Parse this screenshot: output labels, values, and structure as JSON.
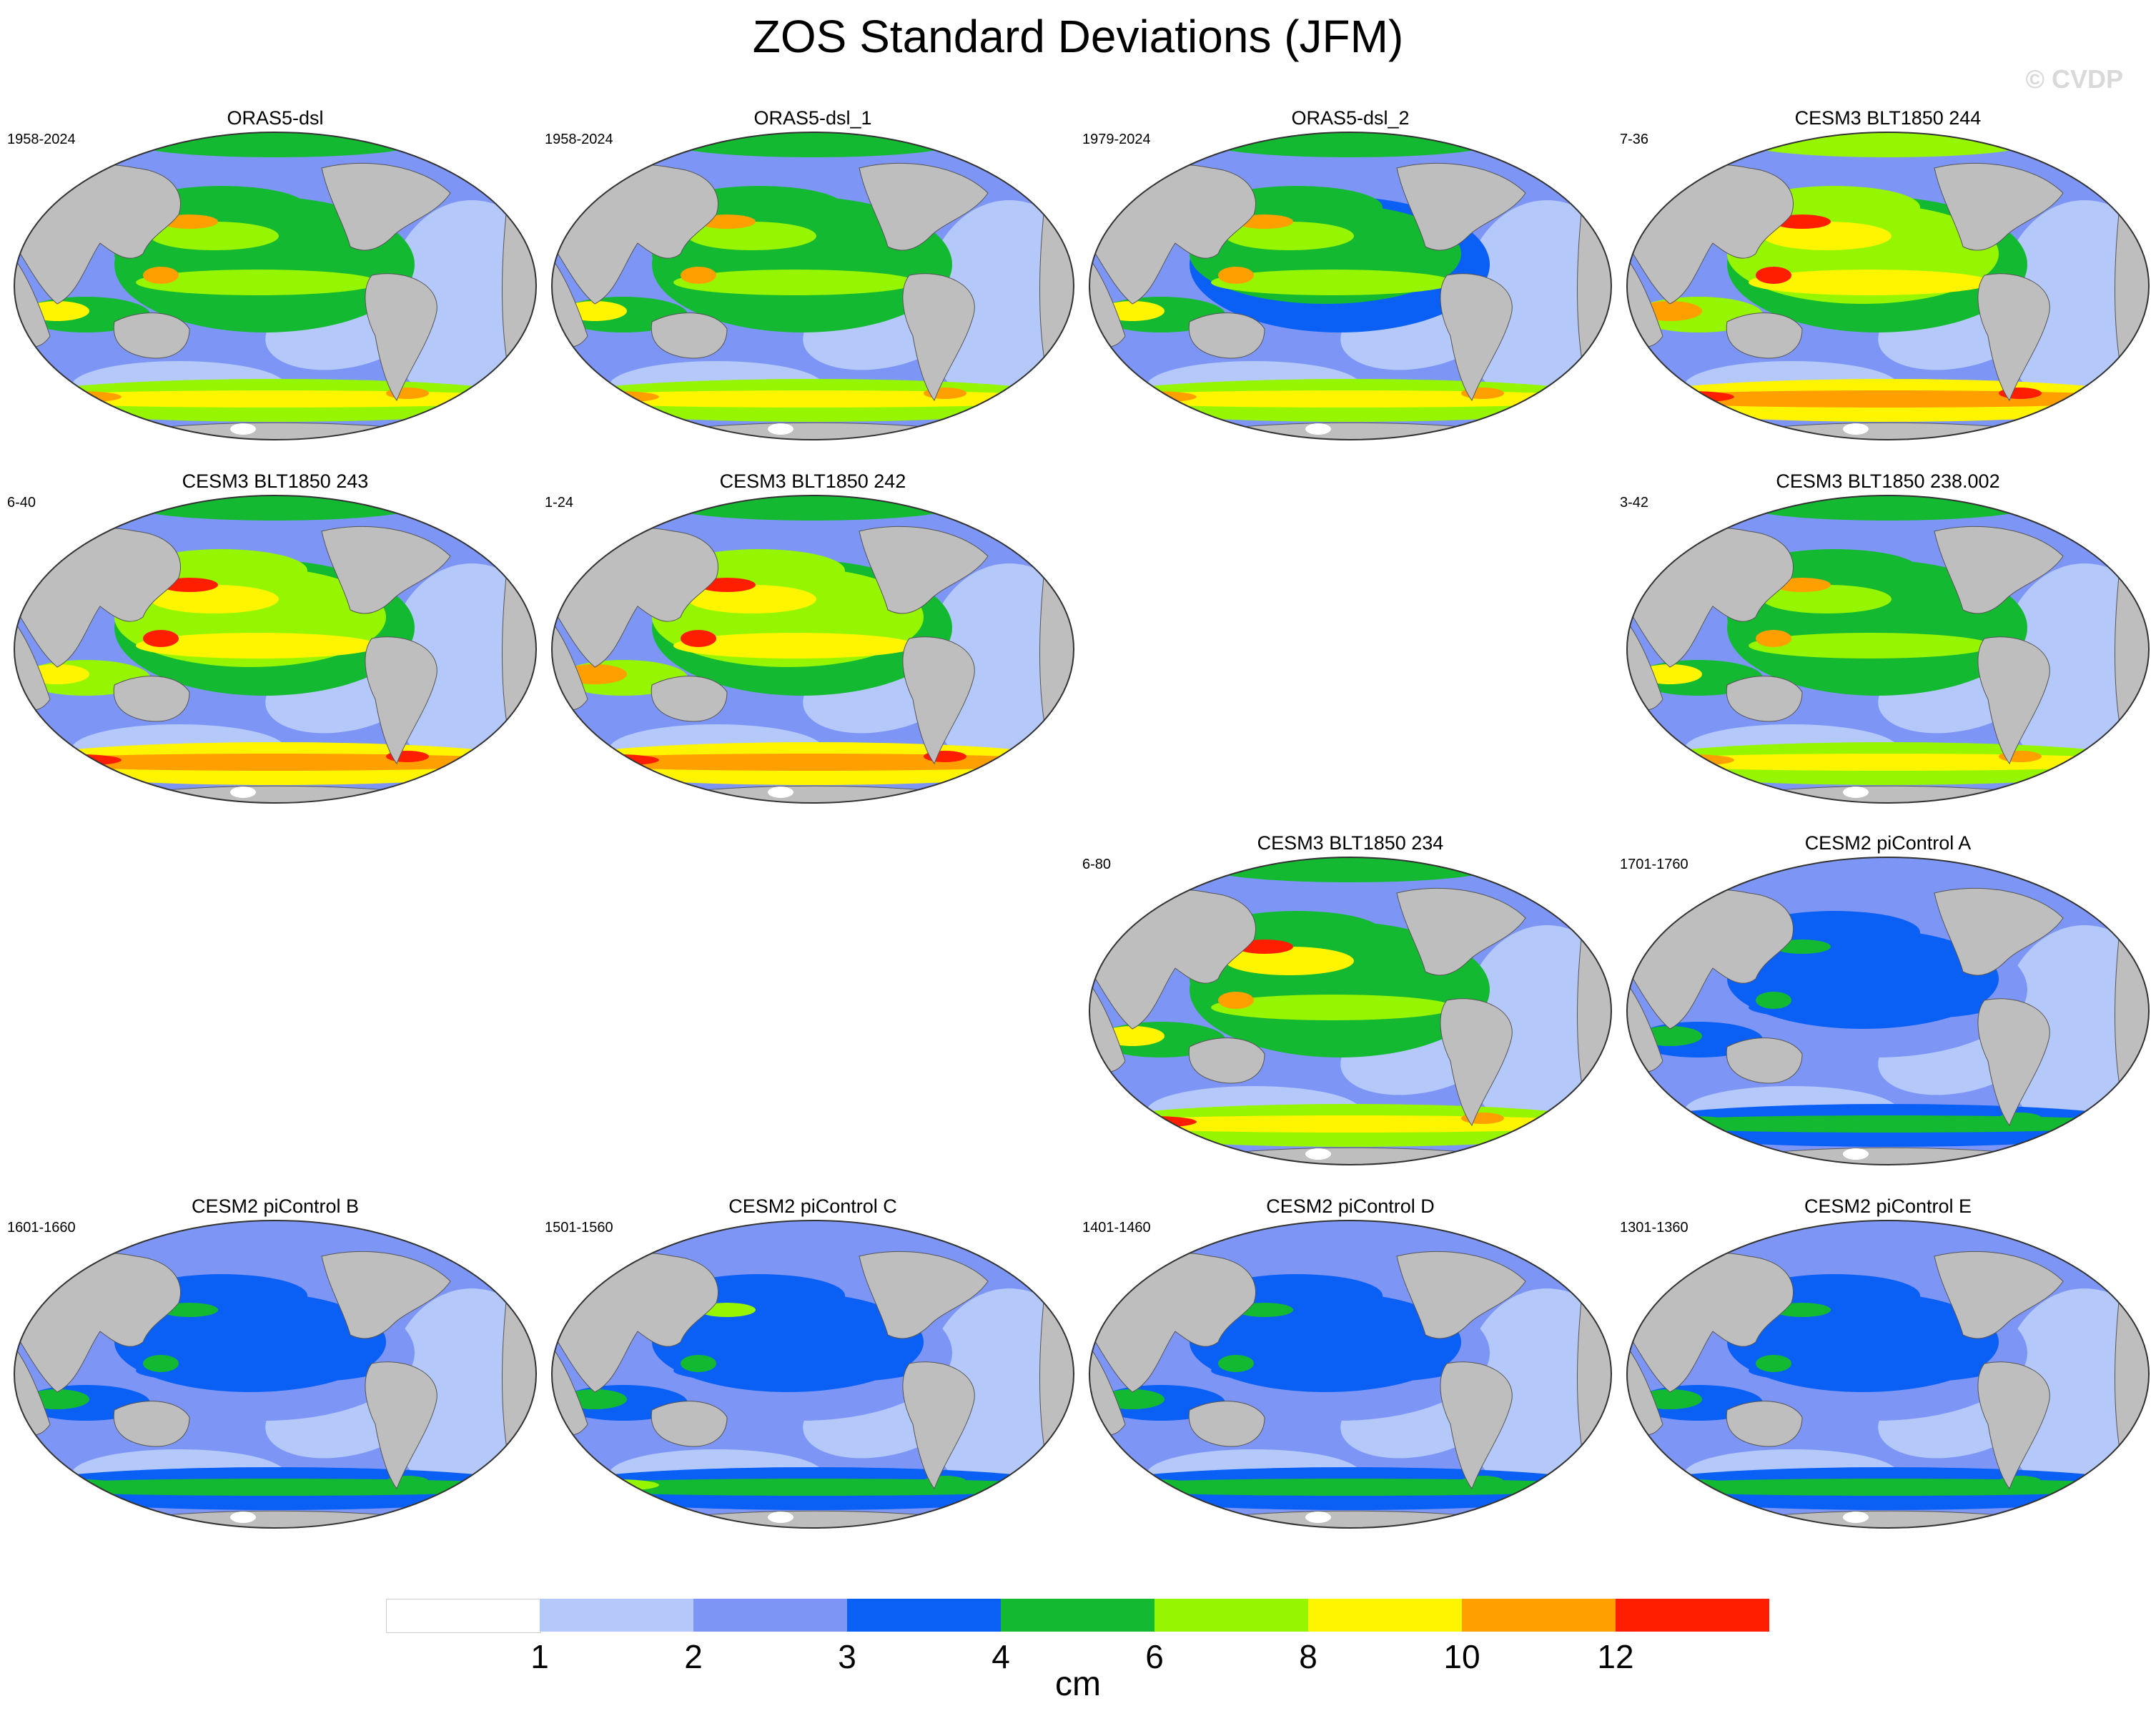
{
  "figure": {
    "title": "ZOS Standard Deviations (JFM)",
    "copyright": "© CVDP"
  },
  "panels": [
    {
      "title": "ORAS5-dsl",
      "years": "1958-2024",
      "intensity": 0.85
    },
    {
      "title": "ORAS5-dsl_1",
      "years": "1958-2024",
      "intensity": 0.85
    },
    {
      "title": "ORAS5-dsl_2",
      "years": "1979-2024",
      "intensity": 0.82
    },
    {
      "title": "CESM3 BLT1850 244",
      "years": "7-36",
      "intensity": 1.0
    },
    {
      "title": "CESM3 BLT1850 243",
      "years": "6-40",
      "intensity": 0.92
    },
    {
      "title": "CESM3 BLT1850 242",
      "years": "1-24",
      "intensity": 0.95
    },
    {
      "title": "CESM3 BLT1850 238.002",
      "years": "3-42",
      "intensity": 0.85
    },
    {
      "title": "CESM3 BLT1850 234",
      "years": "6-80",
      "intensity": 0.88
    },
    {
      "title": "CESM2 piControl A",
      "years": "1701-1760",
      "intensity": 0.5
    },
    {
      "title": "CESM2 piControl B",
      "years": "1601-1660",
      "intensity": 0.5
    },
    {
      "title": "CESM2 piControl C",
      "years": "1501-1560",
      "intensity": 0.52
    },
    {
      "title": "CESM2 piControl D",
      "years": "1401-1460",
      "intensity": 0.5
    },
    {
      "title": "CESM2 piControl E",
      "years": "1301-1360",
      "intensity": 0.5
    }
  ],
  "colorbar": {
    "unit": "cm",
    "levels": [
      "1",
      "2",
      "3",
      "4",
      "6",
      "8",
      "10",
      "12"
    ],
    "colors": [
      "#ffffff",
      "#b4c8fa",
      "#7d96f5",
      "#0a5ff5",
      "#14b932",
      "#96f500",
      "#fff500",
      "#ffa000",
      "#ff1e00"
    ]
  },
  "land_color": "#bebebe"
}
